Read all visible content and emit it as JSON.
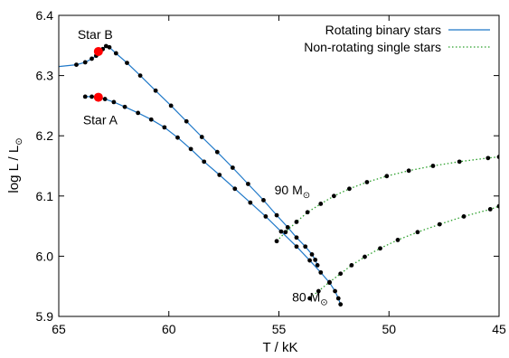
{
  "chart_data": {
    "type": "line",
    "xlabel": "T  / kK",
    "ylabel": "log L / L",
    "ylabel_sub": "⊙",
    "xlim": [
      65,
      45
    ],
    "ylim": [
      5.9,
      6.4
    ],
    "x_ticks": [
      65,
      60,
      55,
      50,
      45
    ],
    "y_ticks": [
      5.9,
      6.0,
      6.1,
      6.2,
      6.3,
      6.4
    ],
    "x_tick_labels": [
      "65",
      "60",
      "55",
      "50",
      "45"
    ],
    "y_tick_labels": [
      "5.9",
      "6.0",
      "6.1",
      "6.2",
      "6.3",
      "6.4"
    ],
    "grid": false,
    "legend_position": "top-right",
    "colors": {
      "rotating": "#1f78c8",
      "nonrotating": "#2ca02c",
      "dots": "#000000",
      "star_marker": "#ff0000"
    },
    "series": [
      {
        "name": "Rotating binary stars",
        "style": "solid",
        "tracks": [
          {
            "x": [
              65.0,
              64.2,
              63.8,
              63.5,
              63.3,
              63.2,
              63.1,
              63.0,
              62.85,
              62.7,
              62.4,
              61.9,
              61.3,
              60.6,
              59.9,
              59.2,
              58.5,
              57.8,
              57.1,
              56.4,
              55.7,
              55.1,
              54.6,
              54.2,
              53.8,
              53.5,
              53.35,
              53.25
            ],
            "y": [
              6.315,
              6.318,
              6.322,
              6.328,
              6.333,
              6.34,
              6.342,
              6.344,
              6.349,
              6.347,
              6.337,
              6.321,
              6.3,
              6.275,
              6.25,
              6.224,
              6.198,
              6.173,
              6.147,
              6.12,
              6.093,
              6.068,
              6.048,
              6.031,
              6.016,
              6.003,
              5.994,
              5.985
            ]
          },
          {
            "x": [
              63.8,
              63.5,
              63.2,
              62.9,
              62.5,
              62.0,
              61.4,
              60.8,
              60.2,
              59.6,
              59.0,
              58.4,
              57.7,
              57.0,
              56.3,
              55.6,
              54.9,
              54.2,
              53.6,
              53.1,
              52.7,
              52.45,
              52.3,
              52.2
            ],
            "y": [
              6.265,
              6.265,
              6.264,
              6.261,
              6.256,
              6.248,
              6.238,
              6.227,
              6.214,
              6.197,
              6.178,
              6.157,
              6.135,
              6.112,
              6.089,
              6.066,
              6.041,
              6.016,
              5.993,
              5.973,
              5.956,
              5.942,
              5.93,
              5.92
            ]
          }
        ]
      },
      {
        "name": "Non-rotating single stars",
        "style": "dotted",
        "tracks": [
          {
            "x": [
              53.6,
              53.2,
              52.7,
              52.2,
              51.7,
              51.1,
              50.4,
              49.6,
              48.7,
              47.7,
              46.6,
              45.4,
              45.0
            ],
            "y": [
              5.93,
              5.942,
              5.957,
              5.971,
              5.985,
              5.999,
              6.013,
              6.027,
              6.04,
              6.053,
              6.066,
              6.078,
              6.083
            ]
          },
          {
            "x": [
              55.1,
              54.7,
              54.2,
              53.7,
              53.1,
              52.5,
              51.8,
              51.0,
              50.1,
              49.1,
              48.0,
              46.8,
              45.5,
              45.0
            ],
            "y": [
              6.025,
              6.04,
              6.057,
              6.073,
              6.087,
              6.1,
              6.112,
              6.123,
              6.133,
              6.142,
              6.15,
              6.157,
              6.163,
              6.165
            ]
          }
        ]
      }
    ],
    "highlight_points": [
      {
        "label": "Star B",
        "x": 63.2,
        "y": 6.34
      },
      {
        "label": "Star A",
        "x": 63.2,
        "y": 6.264
      }
    ],
    "annotations": [
      {
        "text": "90 M",
        "sub": "⊙",
        "x": 55.2,
        "y": 6.103
      },
      {
        "text": "80 M",
        "sub": "⊙",
        "x": 54.4,
        "y": 5.925
      }
    ],
    "legend": [
      {
        "label": "Rotating binary stars",
        "style": "solid"
      },
      {
        "label": "Non-rotating single stars",
        "style": "dotted"
      }
    ]
  }
}
